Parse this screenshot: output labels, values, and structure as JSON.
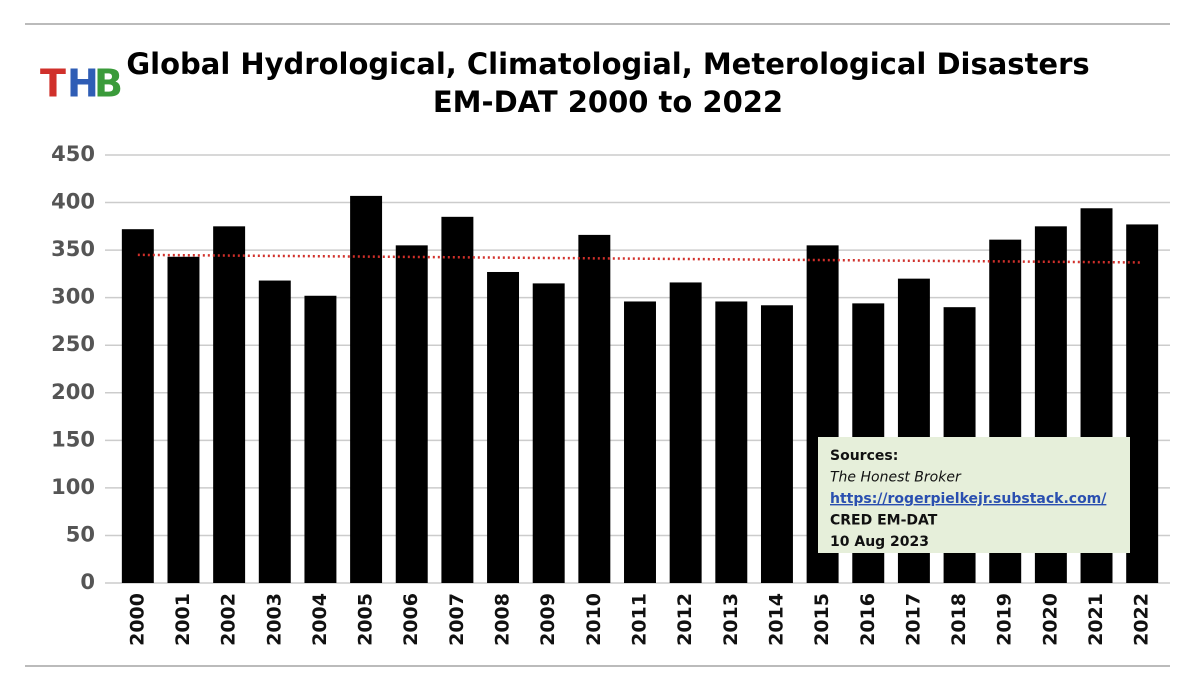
{
  "chart_data": {
    "type": "bar",
    "logo_letters": [
      {
        "text": "T",
        "color": "#d0302b"
      },
      {
        "text": "H",
        "color": "#2f5db5"
      },
      {
        "text": "B",
        "color": "#3a9b3a"
      }
    ],
    "title": "Global Hydrological, Climatologial, Meterological Disasters",
    "subtitle": "EM-DAT 2000 to 2022",
    "categories": [
      "2000",
      "2001",
      "2002",
      "2003",
      "2004",
      "2005",
      "2006",
      "2007",
      "2008",
      "2009",
      "2010",
      "2011",
      "2012",
      "2013",
      "2014",
      "2015",
      "2016",
      "2017",
      "2018",
      "2019",
      "2020",
      "2021",
      "2022"
    ],
    "values": [
      372,
      343,
      375,
      318,
      302,
      407,
      355,
      385,
      327,
      315,
      366,
      296,
      316,
      296,
      292,
      355,
      294,
      320,
      290,
      361,
      375,
      394,
      377
    ],
    "color": "#000000",
    "trend": {
      "color": "#d0302b",
      "values": [
        345,
        337
      ]
    },
    "ylim": [
      0,
      450
    ],
    "yticks": [
      0,
      50,
      100,
      150,
      200,
      250,
      300,
      350,
      400,
      450
    ],
    "grid": true,
    "source_lines": [
      "Sources:",
      "The Honest Broker",
      "https://rogerpielkejr.substack.com/",
      "CRED EM-DAT",
      "10 Aug 2023"
    ]
  }
}
